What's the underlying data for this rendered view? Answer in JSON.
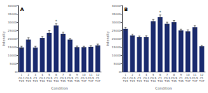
{
  "chart_data": [
    {
      "type": "bar",
      "title": "A",
      "xlabel": "Condition",
      "ylabel": "Intensity",
      "categories": [
        "1\nC0.1\nT25",
        "2\nC0.5\nT25",
        "3\nC1\nT25",
        "4\nC0.1\nT30",
        "5\nC0.5\nT30",
        "6\nC1\nT30",
        "7\nC0.1\nT35",
        "8\nC0.5\nT35",
        "9\nC1\nT35",
        "10\nC0.1\nT37",
        "11\nC0.5\nT37",
        "12\nC1\nT37"
      ],
      "values": [
        14800,
        19500,
        14700,
        20500,
        23500,
        28000,
        23000,
        19500,
        15000,
        15000,
        15200,
        16000
      ],
      "errors": [
        700,
        1100,
        800,
        900,
        1400,
        1100,
        1000,
        700,
        600,
        500,
        600,
        800
      ],
      "color": "#1a2a6e",
      "ylim": [
        0,
        40000
      ],
      "yticks": [
        0,
        5000,
        10000,
        15000,
        20000,
        25000,
        30000,
        35000,
        40000
      ],
      "grid": false,
      "annotations": [
        {
          "text": "*",
          "category": "6\nC1\nT30"
        }
      ]
    },
    {
      "type": "bar",
      "title": "B",
      "xlabel": "Condition",
      "ylabel": "Intensity",
      "categories": [
        "1\nC0.1\nT25",
        "2\nC0.5\nT25",
        "3\nC1\nT25",
        "4\nC0.1\nT30",
        "5\nC0.5\nT30",
        "6\nC1\nT30",
        "7\nC0.1\nT35",
        "8\nC0.5\nT35",
        "9\nC1\nT35",
        "10\nC0.1\nT37",
        "11\nC0.5\nT37",
        "12\nC1\nT37"
      ],
      "values": [
        26000,
        22000,
        21000,
        21000,
        30500,
        33000,
        29000,
        30000,
        25000,
        24500,
        27000,
        15500
      ],
      "errors": [
        900,
        800,
        700,
        800,
        1100,
        1300,
        1000,
        1100,
        800,
        900,
        1000,
        600
      ],
      "color": "#1a2a6e",
      "ylim": [
        0,
        40000
      ],
      "yticks": [
        0,
        5000,
        10000,
        15000,
        20000,
        25000,
        30000,
        35000,
        40000
      ],
      "grid": false,
      "annotations": [
        {
          "text": "*",
          "category": "6\nC1\nT30"
        }
      ]
    }
  ]
}
